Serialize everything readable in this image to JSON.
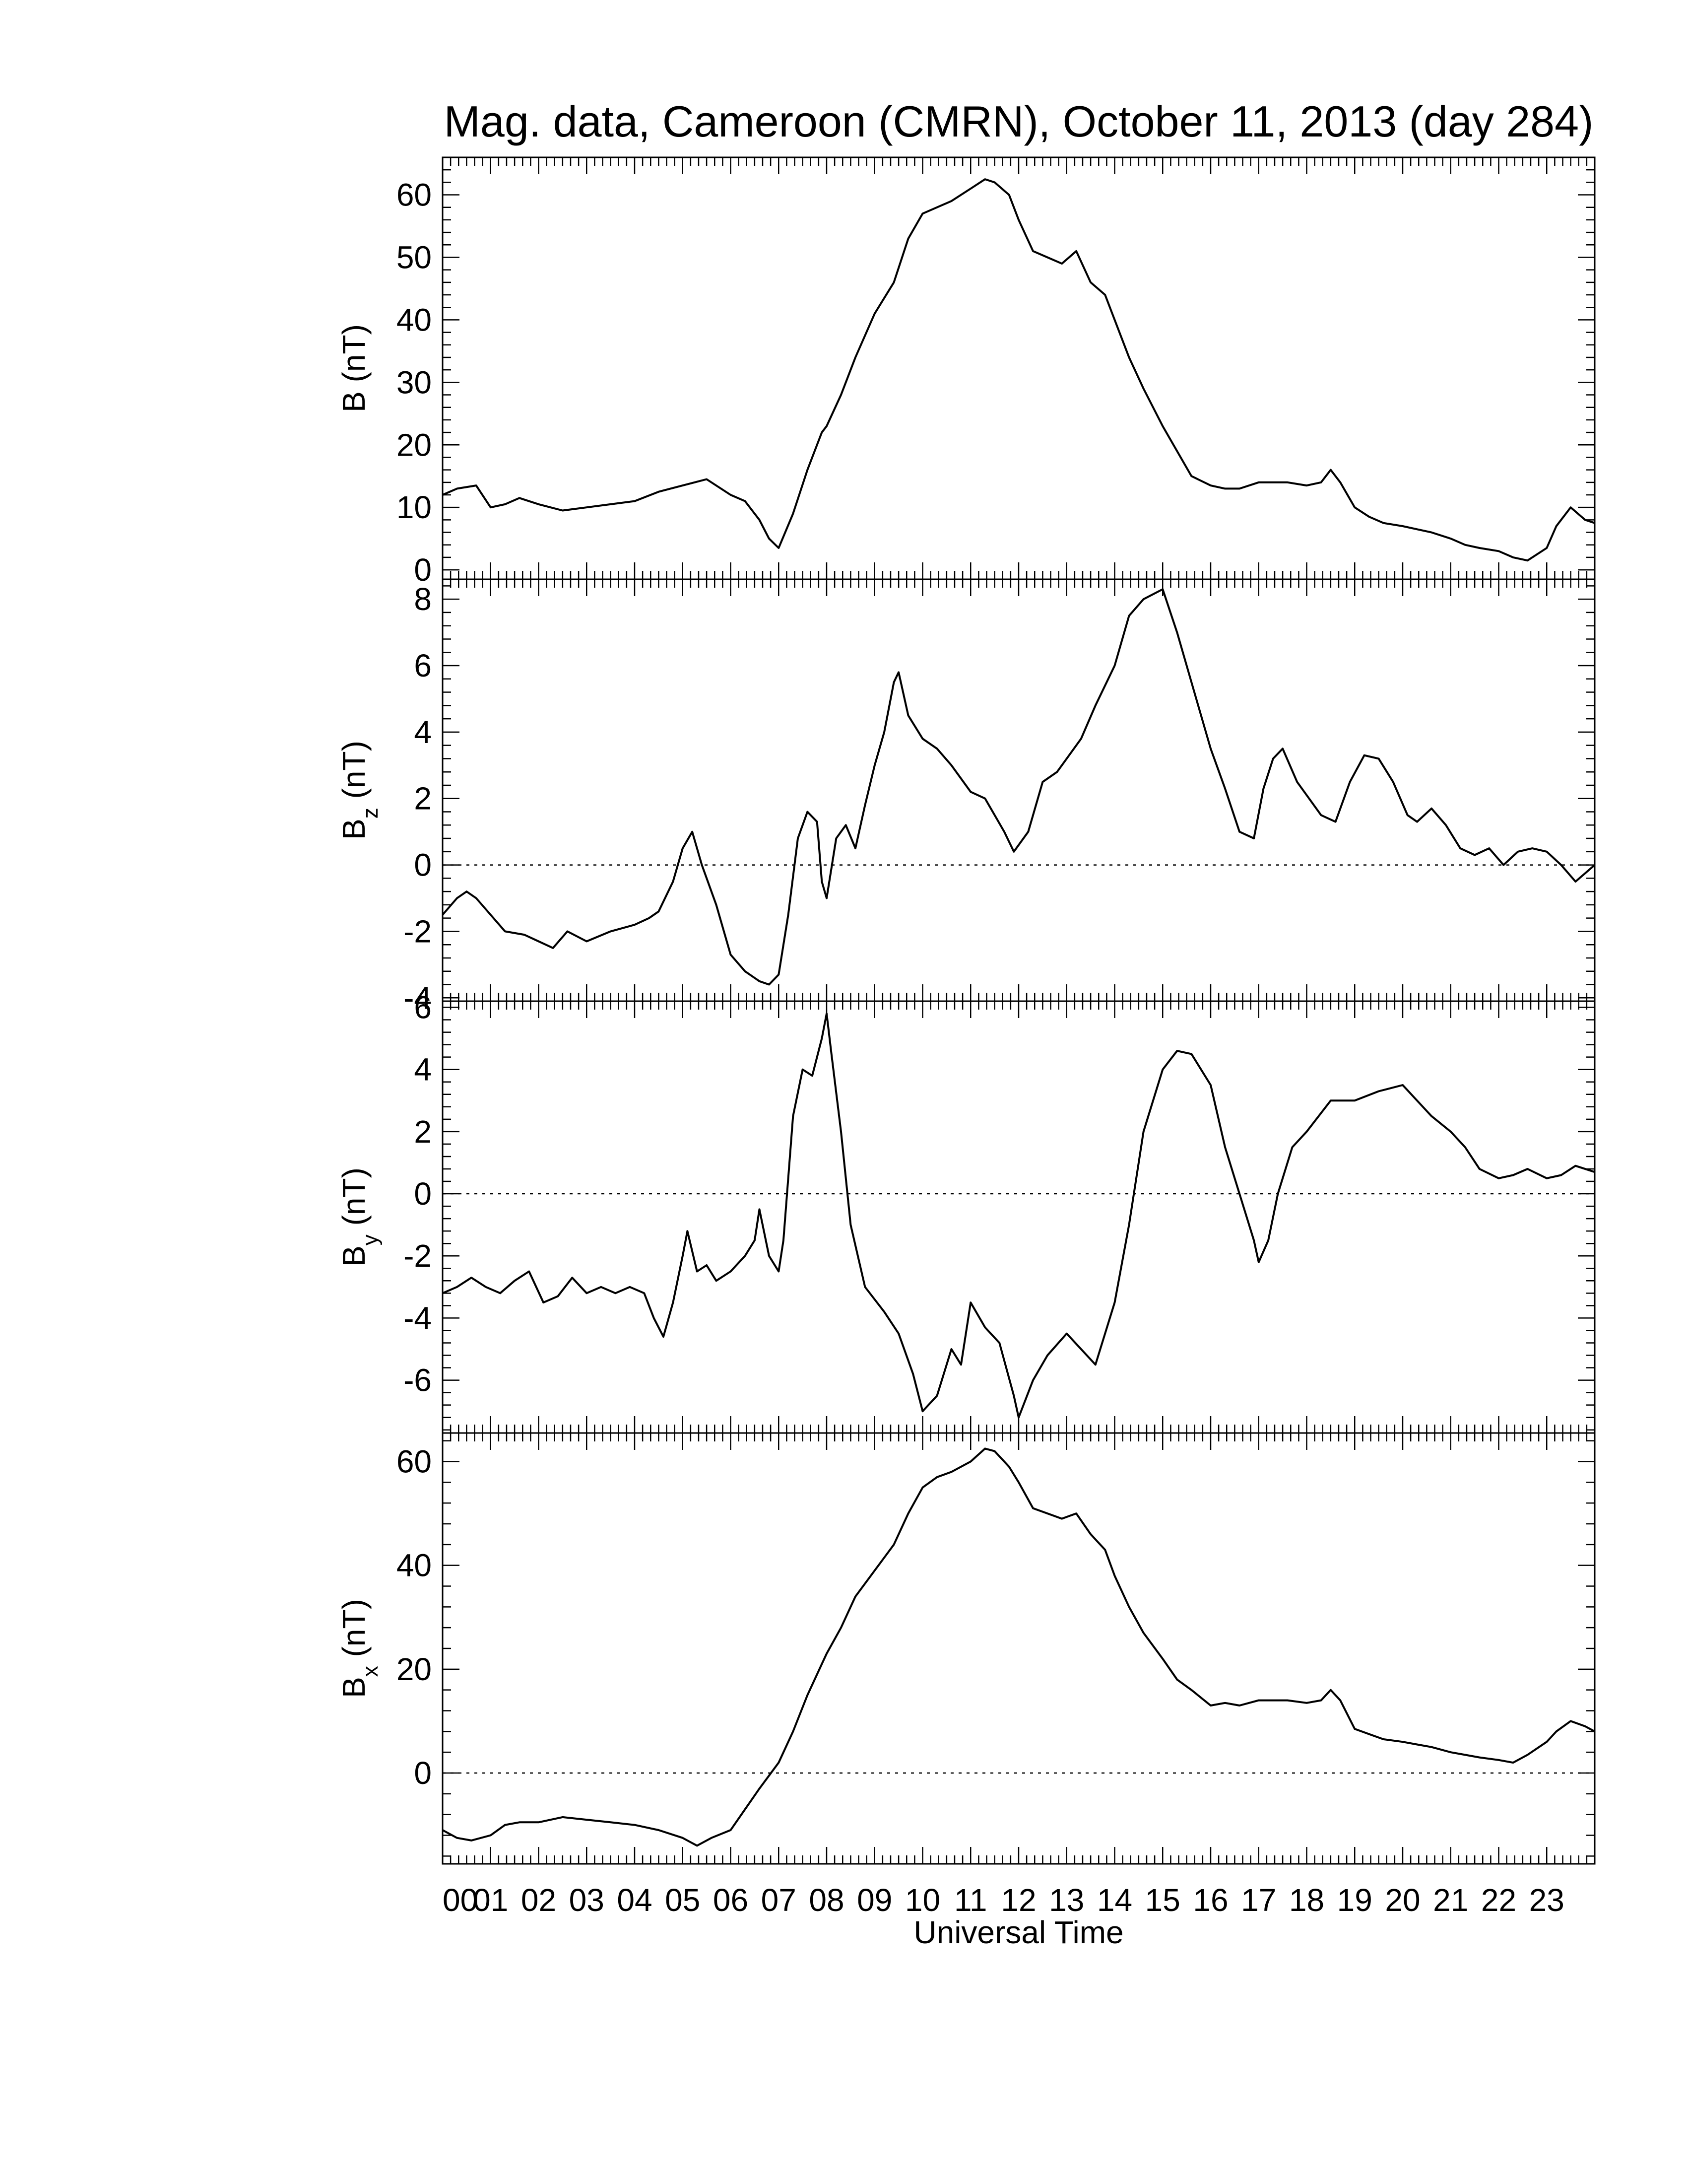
{
  "figure": {
    "title": "Mag. data, Cameroon (CMRN), October 11, 2013 (day 284)",
    "xlabel": "Universal Time",
    "x_tick_labels": [
      "00",
      "01",
      "02",
      "03",
      "04",
      "05",
      "06",
      "07",
      "08",
      "09",
      "10",
      "11",
      "12",
      "13",
      "14",
      "15",
      "16",
      "17",
      "18",
      "19",
      "20",
      "21",
      "22",
      "23"
    ]
  },
  "chart_data": [
    {
      "type": "line",
      "ylabel_main": "B",
      "ylabel_sub": "",
      "ylabel_unit": " (nT)",
      "xlim": [
        0,
        24
      ],
      "ylim": [
        -1.5,
        66
      ],
      "y_ticks": [
        0,
        10,
        20,
        30,
        40,
        50,
        60
      ],
      "zero_line": false,
      "x": [
        0,
        0.3,
        0.7,
        1.0,
        1.3,
        1.6,
        2.0,
        2.5,
        3.0,
        3.5,
        4.0,
        4.5,
        5.0,
        5.5,
        6.0,
        6.3,
        6.6,
        6.8,
        7.0,
        7.3,
        7.6,
        7.9,
        8.0,
        8.3,
        8.6,
        9.0,
        9.4,
        9.7,
        10.0,
        10.3,
        10.6,
        11.0,
        11.3,
        11.5,
        11.8,
        12.0,
        12.3,
        12.6,
        12.9,
        13.2,
        13.5,
        13.8,
        14.0,
        14.3,
        14.6,
        15.0,
        15.3,
        15.6,
        16.0,
        16.3,
        16.6,
        17.0,
        17.3,
        17.6,
        18.0,
        18.3,
        18.5,
        18.7,
        19.0,
        19.3,
        19.6,
        20.0,
        20.3,
        20.6,
        21.0,
        21.3,
        21.6,
        22.0,
        22.3,
        22.6,
        23.0,
        23.2,
        23.5,
        23.8,
        24.0
      ],
      "y": [
        12,
        13,
        13.5,
        10,
        10.5,
        11.5,
        10.5,
        9.5,
        10,
        10.5,
        11,
        12.5,
        13.5,
        14.5,
        12,
        11,
        8,
        5,
        3.5,
        9,
        16,
        22,
        23,
        28,
        34,
        41,
        46,
        53,
        57,
        58,
        59,
        61,
        62.5,
        62,
        60,
        56,
        51,
        50,
        49,
        51,
        46,
        44,
        40,
        34,
        29,
        23,
        19,
        15,
        13.5,
        13,
        13,
        14,
        14,
        14,
        13.5,
        14,
        16,
        14,
        10,
        8.5,
        7.5,
        7,
        6.5,
        6,
        5,
        4,
        3.5,
        3,
        2,
        1.5,
        3.5,
        7,
        10,
        8,
        7.5
      ]
    },
    {
      "type": "line",
      "ylabel_main": "B",
      "ylabel_sub": "z",
      "ylabel_unit": " (nT)",
      "xlim": [
        0,
        24
      ],
      "ylim": [
        -4.1,
        8.6
      ],
      "y_ticks": [
        -4,
        -2,
        0,
        2,
        4,
        6,
        8
      ],
      "zero_line": true,
      "x": [
        0,
        0.3,
        0.5,
        0.7,
        1.0,
        1.3,
        1.7,
        2.0,
        2.3,
        2.6,
        3.0,
        3.5,
        4.0,
        4.3,
        4.5,
        4.8,
        5.0,
        5.2,
        5.4,
        5.7,
        6.0,
        6.3,
        6.6,
        6.8,
        7.0,
        7.2,
        7.4,
        7.6,
        7.8,
        7.9,
        8.0,
        8.2,
        8.4,
        8.6,
        8.8,
        9.0,
        9.2,
        9.4,
        9.5,
        9.7,
        10.0,
        10.3,
        10.6,
        11.0,
        11.3,
        11.7,
        11.9,
        12.2,
        12.5,
        12.8,
        13.0,
        13.3,
        13.6,
        14.0,
        14.3,
        14.6,
        15.0,
        15.3,
        15.6,
        16.0,
        16.3,
        16.6,
        16.9,
        17.1,
        17.3,
        17.5,
        17.8,
        18.0,
        18.3,
        18.6,
        18.9,
        19.2,
        19.5,
        19.8,
        20.1,
        20.3,
        20.6,
        20.9,
        21.2,
        21.5,
        21.8,
        22.1,
        22.4,
        22.7,
        23.0,
        23.3,
        23.6,
        24.0
      ],
      "y": [
        -1.5,
        -1.0,
        -0.8,
        -1.0,
        -1.5,
        -2.0,
        -2.1,
        -2.3,
        -2.5,
        -2.0,
        -2.3,
        -2.0,
        -1.8,
        -1.6,
        -1.4,
        -0.5,
        0.5,
        1.0,
        0.0,
        -1.2,
        -2.7,
        -3.2,
        -3.5,
        -3.6,
        -3.3,
        -1.5,
        0.8,
        1.6,
        1.3,
        -0.5,
        -1.0,
        0.8,
        1.2,
        0.5,
        1.8,
        3.0,
        4.0,
        5.5,
        5.8,
        4.5,
        3.8,
        3.5,
        3.0,
        2.2,
        2.0,
        1.0,
        0.4,
        1.0,
        2.5,
        2.8,
        3.2,
        3.8,
        4.8,
        6.0,
        7.5,
        8.0,
        8.3,
        7.0,
        5.5,
        3.5,
        2.3,
        1.0,
        0.8,
        2.3,
        3.2,
        3.5,
        2.5,
        2.1,
        1.5,
        1.3,
        2.5,
        3.3,
        3.2,
        2.5,
        1.5,
        1.3,
        1.7,
        1.2,
        0.5,
        0.3,
        0.5,
        0.0,
        0.4,
        0.5,
        0.4,
        0.0,
        -0.5,
        0.0
      ]
    },
    {
      "type": "line",
      "ylabel_main": "B",
      "ylabel_sub": "y",
      "ylabel_unit": " (nT)",
      "xlim": [
        0,
        24
      ],
      "ylim": [
        -7.7,
        6.2
      ],
      "y_ticks": [
        -6,
        -4,
        -2,
        0,
        2,
        4,
        6
      ],
      "zero_line": true,
      "x": [
        0,
        0.3,
        0.6,
        0.9,
        1.2,
        1.5,
        1.8,
        2.1,
        2.4,
        2.7,
        3.0,
        3.3,
        3.6,
        3.9,
        4.2,
        4.4,
        4.6,
        4.8,
        5.0,
        5.1,
        5.3,
        5.5,
        5.7,
        6.0,
        6.3,
        6.5,
        6.6,
        6.8,
        7.0,
        7.1,
        7.3,
        7.5,
        7.7,
        7.9,
        8.0,
        8.1,
        8.3,
        8.5,
        8.8,
        9.2,
        9.5,
        9.8,
        10.0,
        10.3,
        10.6,
        10.8,
        11.0,
        11.3,
        11.6,
        11.9,
        12.0,
        12.3,
        12.6,
        13.0,
        13.3,
        13.6,
        14.0,
        14.3,
        14.6,
        15.0,
        15.3,
        15.6,
        16.0,
        16.3,
        16.6,
        16.9,
        17.0,
        17.2,
        17.4,
        17.7,
        18.0,
        18.5,
        19.0,
        19.5,
        20.0,
        20.3,
        20.6,
        21.0,
        21.3,
        21.6,
        22.0,
        22.3,
        22.6,
        23.0,
        23.3,
        23.6,
        24.0
      ],
      "y": [
        -3.2,
        -3.0,
        -2.7,
        -3.0,
        -3.2,
        -2.8,
        -2.5,
        -3.5,
        -3.3,
        -2.7,
        -3.2,
        -3.0,
        -3.2,
        -3.0,
        -3.2,
        -4.0,
        -4.6,
        -3.5,
        -2.0,
        -1.2,
        -2.5,
        -2.3,
        -2.8,
        -2.5,
        -2.0,
        -1.5,
        -0.5,
        -2.0,
        -2.5,
        -1.5,
        2.5,
        4.0,
        3.8,
        5.0,
        5.8,
        4.5,
        2.0,
        -1.0,
        -3.0,
        -3.8,
        -4.5,
        -5.8,
        -7.0,
        -6.5,
        -5.0,
        -5.5,
        -3.5,
        -4.3,
        -4.8,
        -6.5,
        -7.2,
        -6.0,
        -5.2,
        -4.5,
        -5.0,
        -5.5,
        -3.5,
        -1.0,
        2.0,
        4.0,
        4.6,
        4.5,
        3.5,
        1.5,
        0.0,
        -1.5,
        -2.2,
        -1.5,
        0.0,
        1.5,
        2.0,
        3.0,
        3.0,
        3.3,
        3.5,
        3.0,
        2.5,
        2.0,
        1.5,
        0.8,
        0.5,
        0.6,
        0.8,
        0.5,
        0.6,
        0.9,
        0.7
      ]
    },
    {
      "type": "line",
      "ylabel_main": "B",
      "ylabel_sub": "x",
      "ylabel_unit": " (nT)",
      "xlim": [
        0,
        24
      ],
      "ylim": [
        -17.5,
        65.5
      ],
      "y_ticks": [
        0,
        20,
        40,
        60
      ],
      "zero_line": true,
      "x": [
        0,
        0.3,
        0.6,
        1.0,
        1.3,
        1.6,
        2.0,
        2.5,
        3.0,
        3.5,
        4.0,
        4.5,
        5.0,
        5.3,
        5.6,
        6.0,
        6.3,
        6.6,
        7.0,
        7.3,
        7.6,
        7.9,
        8.0,
        8.3,
        8.6,
        9.0,
        9.4,
        9.7,
        10.0,
        10.3,
        10.6,
        11.0,
        11.3,
        11.5,
        11.8,
        12.0,
        12.3,
        12.6,
        12.9,
        13.2,
        13.5,
        13.8,
        14.0,
        14.3,
        14.6,
        15.0,
        15.3,
        15.6,
        16.0,
        16.3,
        16.6,
        17.0,
        17.3,
        17.6,
        18.0,
        18.3,
        18.5,
        18.7,
        19.0,
        19.3,
        19.6,
        20.0,
        20.3,
        20.6,
        21.0,
        21.3,
        21.6,
        22.0,
        22.3,
        22.6,
        23.0,
        23.2,
        23.5,
        23.8,
        24.0
      ],
      "y": [
        -11,
        -12.5,
        -13,
        -12,
        -10,
        -9.5,
        -9.5,
        -8.5,
        -9,
        -9.5,
        -10,
        -11,
        -12.5,
        -14,
        -12.5,
        -11,
        -7,
        -3,
        2,
        8,
        15,
        21,
        23,
        28,
        34,
        39,
        44,
        50,
        55,
        57,
        58,
        60,
        62.5,
        62,
        59,
        56,
        51,
        50,
        49,
        50,
        46,
        43,
        38,
        32,
        27,
        22,
        18,
        16,
        13,
        13.5,
        13,
        14,
        14,
        14,
        13.5,
        14,
        16,
        14,
        8.5,
        7.5,
        6.5,
        6,
        5.5,
        5,
        4,
        3.5,
        3,
        2.5,
        2,
        3.5,
        6,
        8,
        10,
        9,
        8
      ]
    }
  ]
}
